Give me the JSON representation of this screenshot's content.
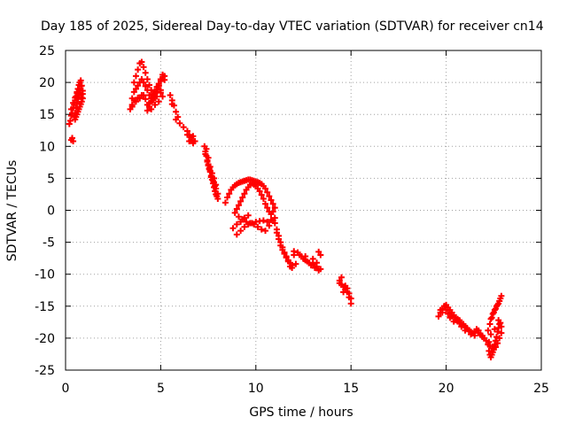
{
  "chart_data": {
    "type": "scatter",
    "title": "Day 185 of 2025, Sidereal Day-to-day VTEC variation (SDTVAR) for receiver cn14",
    "xlabel": "GPS time / hours",
    "ylabel": "SDTVAR / TECUs",
    "xlim": [
      0,
      25
    ],
    "ylim": [
      -25,
      25
    ],
    "xticks": [
      0,
      5,
      10,
      15,
      20,
      25
    ],
    "yticks": [
      -25,
      -20,
      -15,
      -10,
      -5,
      0,
      5,
      10,
      15,
      20,
      25
    ],
    "xtick_labels": [
      "0",
      "5",
      "10",
      "15",
      "20",
      "25"
    ],
    "ytick_labels": [
      "-25",
      "-20",
      "-15",
      "-10",
      "-5",
      "0",
      "5",
      "10",
      "15",
      "20",
      "25"
    ],
    "grid": true,
    "marker": "+",
    "marker_color": "#ff0000",
    "series": [
      {
        "name": "SDTVAR",
        "x": [
          0.3,
          0.35,
          0.4,
          0.2,
          0.25,
          0.3,
          0.35,
          0.4,
          0.45,
          0.5,
          0.55,
          0.6,
          0.65,
          0.7,
          0.75,
          0.8,
          0.85,
          0.9,
          0.5,
          0.55,
          0.6,
          0.65,
          0.7,
          0.75,
          0.8,
          0.85,
          0.9,
          0.3,
          0.4,
          0.5,
          0.6,
          0.7,
          0.8,
          0.9,
          0.85,
          0.8,
          0.75,
          0.7,
          0.65,
          0.6,
          0.55,
          0.5,
          0.45,
          3.4,
          3.5,
          3.5,
          3.6,
          3.6,
          3.7,
          3.8,
          3.9,
          4.0,
          4.1,
          4.2,
          4.3,
          4.4,
          4.5,
          4.6,
          4.7,
          4.8,
          4.9,
          5.0,
          5.1,
          5.2,
          3.7,
          3.8,
          3.9,
          4.0,
          4.1,
          4.2,
          4.3,
          4.4,
          4.5,
          4.6,
          4.7,
          4.8,
          4.9,
          5.0,
          5.1,
          5.2,
          3.6,
          3.8,
          4.0,
          4.2,
          4.4,
          4.6,
          4.8,
          5.0,
          3.5,
          3.7,
          3.9,
          4.1,
          4.3,
          4.5,
          4.7,
          4.9,
          5.1,
          5.0,
          4.9,
          4.8,
          4.7,
          4.6,
          4.5,
          4.4,
          4.3,
          5.5,
          5.6,
          5.7,
          5.8,
          5.9,
          5.6,
          5.8,
          6.0,
          6.2,
          6.4,
          6.5,
          6.6,
          6.7,
          6.8,
          6.6,
          6.4,
          6.5,
          6.7,
          7.3,
          7.35,
          7.4,
          7.45,
          7.5,
          7.55,
          7.6,
          7.65,
          7.7,
          7.75,
          7.8,
          7.85,
          7.9,
          7.95,
          8.0,
          7.4,
          7.5,
          7.6,
          7.7,
          7.8,
          7.9,
          7.5,
          7.6,
          7.7,
          7.8,
          7.9,
          8.0,
          7.35,
          7.45,
          7.55,
          7.65,
          7.75,
          7.85,
          8.4,
          8.5,
          8.6,
          8.7,
          8.8,
          8.9,
          9.0,
          9.1,
          9.2,
          9.3,
          9.4,
          9.5,
          9.6,
          9.7,
          9.8,
          9.9,
          10.0,
          10.1,
          10.2,
          10.3,
          10.4,
          10.5,
          10.6,
          10.7,
          10.8,
          10.9,
          11.0,
          10.9,
          10.8,
          10.7,
          10.6,
          10.5,
          10.4,
          10.3,
          10.2,
          10.1,
          10.0,
          9.9,
          9.8,
          9.7,
          9.6,
          9.5,
          9.4,
          9.3,
          9.2,
          9.1,
          9.0,
          8.9,
          9.0,
          9.2,
          9.4,
          9.6,
          9.8,
          10.0,
          10.2,
          10.4,
          10.6,
          10.8,
          11.0,
          9.1,
          9.3,
          9.5,
          9.7,
          9.9,
          10.1,
          10.3,
          10.5,
          10.7,
          10.9,
          8.8,
          9.0,
          9.2,
          9.4,
          9.6,
          11.0,
          11.1,
          11.2,
          11.3,
          11.4,
          11.5,
          11.6,
          11.7,
          11.8,
          11.9,
          12.0,
          11.2,
          11.4,
          11.6,
          11.8,
          12.0,
          11.1,
          11.3,
          11.5,
          11.7,
          11.9,
          12.2,
          12.4,
          12.6,
          12.8,
          13.0,
          13.2,
          13.4,
          12.3,
          12.5,
          12.7,
          12.9,
          13.1,
          13.3,
          12.1,
          12.6,
          13.0,
          13.3,
          13.4,
          13.2,
          14.4,
          14.5,
          14.6,
          14.7,
          14.8,
          14.9,
          15.0,
          14.5,
          14.7,
          14.9,
          14.6,
          14.8,
          14.4,
          15.0,
          19.6,
          19.7,
          19.8,
          19.9,
          20.0,
          20.1,
          20.2,
          20.3,
          20.4,
          20.5,
          20.6,
          20.7,
          20.8,
          20.9,
          21.0,
          21.1,
          21.2,
          21.3,
          21.4,
          21.5,
          21.6,
          21.7,
          21.8,
          21.9,
          22.0,
          22.1,
          19.7,
          19.9,
          20.1,
          20.3,
          20.5,
          20.7,
          20.9,
          21.1,
          21.3,
          21.5,
          21.7,
          21.9,
          19.8,
          20.0,
          20.2,
          20.4,
          20.6,
          20.8,
          21.0,
          22.2,
          22.25,
          22.3,
          22.35,
          22.4,
          22.45,
          22.5,
          22.55,
          22.6,
          22.65,
          22.7,
          22.75,
          22.8,
          22.85,
          22.9,
          22.2,
          22.3,
          22.4,
          22.5,
          22.6,
          22.7,
          22.8,
          22.9,
          22.25,
          22.35,
          22.45,
          22.55,
          22.65,
          22.75,
          22.85,
          22.3,
          22.4,
          22.5,
          22.6,
          22.7,
          22.8,
          22.9,
          22.35,
          22.55,
          22.75
        ],
        "y": [
          11.0,
          11.3,
          10.8,
          13.5,
          14.0,
          14.8,
          15.2,
          16.0,
          16.5,
          17.2,
          17.8,
          18.5,
          19.0,
          19.6,
          20.0,
          20.3,
          19.5,
          18.7,
          14.2,
          14.6,
          15.0,
          15.4,
          15.8,
          16.2,
          16.6,
          17.0,
          17.5,
          15.8,
          16.8,
          17.6,
          18.3,
          18.9,
          19.4,
          18.2,
          17.6,
          18.0,
          18.4,
          18.0,
          17.4,
          16.8,
          16.0,
          15.2,
          14.6,
          15.8,
          16.5,
          17.5,
          18.5,
          20.0,
          21.0,
          22.0,
          23.0,
          23.2,
          22.4,
          21.5,
          20.5,
          19.6,
          18.8,
          18.2,
          17.8,
          18.5,
          19.5,
          20.5,
          21.2,
          21.0,
          19.0,
          19.5,
          20.0,
          20.5,
          20.0,
          19.4,
          18.8,
          18.0,
          17.5,
          18.0,
          18.6,
          19.3,
          19.8,
          20.2,
          20.8,
          20.4,
          17.2,
          17.6,
          18.0,
          17.4,
          16.8,
          17.2,
          17.8,
          18.4,
          16.2,
          17.0,
          17.5,
          18.0,
          16.5,
          15.8,
          16.5,
          17.0,
          17.8,
          18.8,
          19.5,
          19.0,
          18.2,
          17.6,
          17.0,
          16.2,
          15.6,
          18.0,
          17.2,
          16.4,
          15.4,
          14.6,
          16.6,
          14.2,
          13.6,
          13.0,
          12.4,
          11.8,
          11.0,
          10.5,
          10.8,
          11.4,
          11.8,
          10.8,
          11.6,
          10.0,
          9.2,
          8.5,
          7.8,
          7.2,
          6.6,
          6.0,
          5.4,
          4.8,
          4.2,
          3.6,
          3.0,
          2.5,
          2.2,
          1.8,
          9.6,
          8.2,
          6.8,
          5.8,
          5.0,
          4.0,
          7.0,
          6.2,
          5.2,
          4.4,
          3.4,
          2.6,
          8.8,
          7.6,
          6.4,
          5.2,
          4.6,
          3.8,
          1.2,
          2.0,
          2.6,
          3.2,
          3.6,
          3.9,
          4.1,
          4.3,
          4.4,
          4.5,
          4.6,
          4.7,
          4.8,
          4.8,
          4.7,
          4.6,
          4.5,
          4.4,
          4.3,
          4.1,
          3.8,
          3.4,
          2.8,
          2.2,
          1.6,
          1.0,
          0.4,
          -0.2,
          -0.6,
          -0.2,
          0.4,
          1.0,
          1.8,
          2.4,
          3.0,
          3.4,
          3.8,
          4.0,
          4.2,
          4.0,
          3.6,
          3.2,
          2.6,
          2.0,
          1.4,
          0.8,
          0.2,
          -0.4,
          -3.8,
          -3.2,
          -2.6,
          -2.2,
          -2.0,
          -1.8,
          -1.7,
          -1.6,
          -1.8,
          -1.5,
          -1.2,
          -1.0,
          -1.4,
          -1.8,
          -2.0,
          -2.2,
          -2.6,
          -3.0,
          -3.2,
          -2.4,
          -1.6,
          -2.8,
          -2.2,
          -1.8,
          -1.2,
          -0.8,
          -2.0,
          -3.5,
          -4.5,
          -5.5,
          -6.2,
          -6.8,
          -7.4,
          -7.8,
          -8.2,
          -8.6,
          -7.0,
          -4.0,
          -5.8,
          -7.2,
          -8.8,
          -6.4,
          -3.0,
          -5.0,
          -6.6,
          -8.0,
          -9.0,
          -6.6,
          -7.2,
          -7.8,
          -8.2,
          -8.4,
          -8.8,
          -9.2,
          -7.0,
          -7.6,
          -8.0,
          -8.6,
          -9.0,
          -9.4,
          -8.4,
          -7.2,
          -7.6,
          -6.5,
          -7.0,
          -8.2,
          -11.0,
          -11.6,
          -12.0,
          -12.4,
          -12.8,
          -13.6,
          -14.6,
          -10.5,
          -11.8,
          -13.0,
          -12.8,
          -12.2,
          -11.4,
          -13.8,
          -16.6,
          -16.0,
          -15.4,
          -15.0,
          -14.8,
          -15.2,
          -15.6,
          -16.0,
          -16.4,
          -16.8,
          -17.0,
          -17.2,
          -17.6,
          -17.8,
          -18.2,
          -18.4,
          -18.8,
          -19.0,
          -19.2,
          -19.0,
          -18.6,
          -18.8,
          -19.4,
          -19.8,
          -20.0,
          -20.4,
          -15.6,
          -15.0,
          -16.2,
          -16.6,
          -17.2,
          -17.6,
          -18.0,
          -18.6,
          -19.4,
          -19.6,
          -19.2,
          -19.6,
          -16.0,
          -15.6,
          -16.8,
          -17.4,
          -17.4,
          -18.2,
          -18.8,
          -21.0,
          -22.0,
          -22.6,
          -23.0,
          -22.6,
          -22.2,
          -21.6,
          -21.0,
          -20.4,
          -19.8,
          -19.0,
          -18.4,
          -17.8,
          -17.6,
          -18.2,
          -18.8,
          -17.8,
          -16.8,
          -16.0,
          -15.4,
          -14.8,
          -14.2,
          -13.4,
          -20.6,
          -17.0,
          -16.2,
          -15.6,
          -15.0,
          -14.6,
          -13.8,
          -21.2,
          -21.6,
          -21.8,
          -21.4,
          -20.8,
          -20.0,
          -19.2,
          -19.4,
          -18.6,
          -17.2
        ]
      }
    ]
  }
}
